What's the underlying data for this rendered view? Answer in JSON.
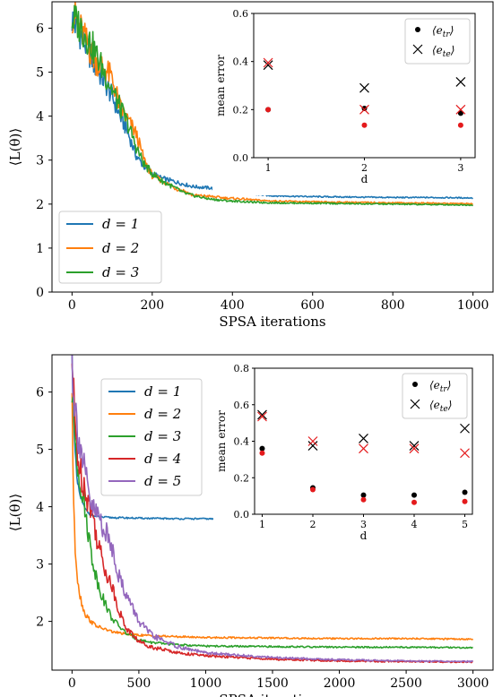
{
  "chart_data": [
    {
      "type": "line",
      "xlabel": "SPSA iterations",
      "ylabel": "⟨L(θ)⟩",
      "xlim": [
        -50,
        1050
      ],
      "ylim": [
        0,
        6.6
      ],
      "xticks": [
        0,
        200,
        400,
        600,
        800,
        1000
      ],
      "yticks": [
        0,
        1,
        2,
        3,
        4,
        5,
        6
      ],
      "legend_position": "bottom-left",
      "series": [
        {
          "name": "d = 1",
          "color": "#1f77b4",
          "x": [
            0,
            10,
            20,
            30,
            40,
            50,
            60,
            80,
            100,
            120,
            140,
            160,
            180,
            200,
            220,
            240,
            260,
            280,
            300,
            340,
            380,
            420,
            460,
            500,
            600,
            700,
            800,
            900,
            1000
          ],
          "y": [
            6.2,
            6.05,
            5.9,
            5.7,
            5.5,
            5.3,
            5.1,
            4.8,
            4.45,
            4.0,
            3.6,
            3.1,
            2.85,
            2.7,
            2.6,
            2.55,
            2.5,
            2.45,
            2.4,
            2.37,
            2.33,
            2.27,
            2.22,
            2.19,
            2.17,
            2.16,
            2.15,
            2.15,
            2.14
          ]
        },
        {
          "name": "d = 2",
          "color": "#ff7f0e",
          "x": [
            0,
            10,
            20,
            30,
            40,
            50,
            60,
            80,
            100,
            120,
            140,
            160,
            180,
            200,
            220,
            240,
            260,
            280,
            300,
            340,
            380,
            420,
            460,
            500,
            600,
            700,
            800,
            900,
            1000
          ],
          "y": [
            6.3,
            6.2,
            6.0,
            5.8,
            5.6,
            5.4,
            5.25,
            5.1,
            4.85,
            4.2,
            3.9,
            3.6,
            3.0,
            2.65,
            2.55,
            2.45,
            2.35,
            2.3,
            2.2,
            2.18,
            2.14,
            2.12,
            2.09,
            2.07,
            2.05,
            2.04,
            2.03,
            2.02,
            2.01
          ]
        },
        {
          "name": "d = 3",
          "color": "#2ca02c",
          "x": [
            0,
            10,
            20,
            30,
            40,
            50,
            60,
            80,
            100,
            120,
            140,
            160,
            180,
            200,
            220,
            240,
            260,
            280,
            300,
            340,
            380,
            420,
            460,
            500,
            600,
            700,
            800,
            900,
            1000
          ],
          "y": [
            6.2,
            6.15,
            6.05,
            5.9,
            5.75,
            5.6,
            5.4,
            5.0,
            4.6,
            4.2,
            3.8,
            3.3,
            2.9,
            2.7,
            2.55,
            2.45,
            2.35,
            2.25,
            2.2,
            2.12,
            2.08,
            2.06,
            2.04,
            2.03,
            2.02,
            2.01,
            2.0,
            1.99,
            1.98
          ]
        }
      ],
      "inset": {
        "xlabel": "d",
        "ylabel": "mean error",
        "xlim": [
          0.85,
          3.15
        ],
        "ylim": [
          0,
          0.6
        ],
        "xticks": [
          1,
          2,
          3
        ],
        "yticks": [
          0.0,
          0.2,
          0.4,
          0.6
        ],
        "legend_position": "top-right",
        "series": [
          {
            "name": "⟨e_tr⟩",
            "marker": "dot",
            "color": "#000000",
            "x": [
              1,
              2,
              3
            ],
            "y": [
              0.2,
              0.205,
              0.185
            ]
          },
          {
            "name": "⟨e_tr⟩ (red)",
            "marker": "dot",
            "color": "#e41a1c",
            "x": [
              1,
              2,
              3
            ],
            "y": [
              0.2,
              0.135,
              0.135
            ]
          },
          {
            "name": "⟨e_te⟩",
            "marker": "x",
            "color": "#000000",
            "x": [
              1,
              2,
              3
            ],
            "y": [
              0.385,
              0.29,
              0.315
            ]
          },
          {
            "name": "⟨e_te⟩ (red)",
            "marker": "x",
            "color": "#e41a1c",
            "x": [
              1,
              2,
              3
            ],
            "y": [
              0.395,
              0.2,
              0.2
            ]
          }
        ],
        "legend": [
          {
            "marker": "dot",
            "label": "⟨e",
            "sub": "tr",
            "close": "⟩"
          },
          {
            "marker": "x",
            "label": "⟨e",
            "sub": "te",
            "close": "⟩"
          }
        ]
      }
    },
    {
      "type": "line",
      "xlabel": "SPSA iterations",
      "ylabel": "⟨L(θ)⟩",
      "xlim": [
        -150,
        3150
      ],
      "ylim": [
        1.15,
        6.65
      ],
      "xticks": [
        0,
        500,
        1000,
        1500,
        2000,
        2500,
        3000
      ],
      "yticks": [
        2,
        3,
        4,
        5,
        6
      ],
      "legend_position": "top-left",
      "series": [
        {
          "name": "d = 1",
          "color": "#1f77b4",
          "x": [
            0,
            10,
            20,
            40,
            60,
            80,
            100,
            130,
            160,
            200,
            300,
            500,
            800,
            1000,
            1150
          ],
          "y": [
            6.5,
            5.8,
            5.0,
            4.4,
            4.2,
            4.05,
            3.95,
            3.88,
            3.84,
            3.82,
            3.81,
            3.8,
            3.79,
            3.79,
            3.78
          ]
        },
        {
          "name": "d = 2",
          "color": "#ff7f0e",
          "x": [
            0,
            10,
            20,
            40,
            60,
            80,
            100,
            150,
            200,
            300,
            400,
            500,
            700,
            1000,
            1500,
            2000,
            2500,
            3000
          ],
          "y": [
            6.0,
            4.2,
            3.4,
            2.8,
            2.45,
            2.25,
            2.12,
            1.98,
            1.9,
            1.82,
            1.78,
            1.76,
            1.74,
            1.72,
            1.71,
            1.7,
            1.7,
            1.69
          ]
        },
        {
          "name": "d = 3",
          "color": "#2ca02c",
          "x": [
            0,
            20,
            40,
            60,
            80,
            100,
            150,
            200,
            250,
            300,
            400,
            500,
            600,
            800,
            1000,
            1500,
            2000,
            2500,
            3000
          ],
          "y": [
            6.0,
            5.3,
            4.8,
            4.5,
            4.2,
            3.9,
            3.1,
            2.6,
            2.3,
            2.05,
            1.8,
            1.68,
            1.63,
            1.59,
            1.57,
            1.56,
            1.55,
            1.55,
            1.54
          ]
        },
        {
          "name": "d = 4",
          "color": "#d62728",
          "x": [
            0,
            20,
            40,
            60,
            80,
            100,
            150,
            200,
            250,
            300,
            350,
            400,
            500,
            600,
            800,
            1000,
            1500,
            2000,
            2500,
            3000
          ],
          "y": [
            6.5,
            5.5,
            5.0,
            4.6,
            4.5,
            4.3,
            3.9,
            3.3,
            2.9,
            2.6,
            2.2,
            1.9,
            1.65,
            1.55,
            1.45,
            1.4,
            1.34,
            1.31,
            1.3,
            1.29
          ]
        },
        {
          "name": "d = 5",
          "color": "#9467bd",
          "x": [
            0,
            20,
            40,
            60,
            80,
            100,
            150,
            200,
            250,
            300,
            350,
            400,
            500,
            600,
            800,
            1000,
            1500,
            2000,
            2500,
            3000
          ],
          "y": [
            6.55,
            5.8,
            5.4,
            5.1,
            4.8,
            4.5,
            3.95,
            3.85,
            3.55,
            3.3,
            2.8,
            2.5,
            2.0,
            1.75,
            1.55,
            1.45,
            1.37,
            1.33,
            1.31,
            1.3
          ]
        }
      ],
      "inset": {
        "xlabel": "d",
        "ylabel": "mean error",
        "xlim": [
          0.85,
          5.15
        ],
        "ylim": [
          0,
          0.8
        ],
        "xticks": [
          1,
          2,
          3,
          4,
          5
        ],
        "yticks": [
          0.0,
          0.2,
          0.4,
          0.6,
          0.8
        ],
        "legend_position": "top-right",
        "series": [
          {
            "name": "⟨e_tr⟩",
            "marker": "dot",
            "color": "#000000",
            "x": [
              1,
              2,
              3,
              4,
              5
            ],
            "y": [
              0.36,
              0.145,
              0.105,
              0.105,
              0.12
            ]
          },
          {
            "name": "⟨e_tr⟩ (red)",
            "marker": "dot",
            "color": "#e41a1c",
            "x": [
              1,
              2,
              3,
              4,
              5
            ],
            "y": [
              0.335,
              0.135,
              0.08,
              0.065,
              0.07
            ]
          },
          {
            "name": "⟨e_te⟩",
            "marker": "x",
            "color": "#000000",
            "x": [
              1,
              2,
              3,
              4,
              5
            ],
            "y": [
              0.545,
              0.375,
              0.415,
              0.375,
              0.47
            ]
          },
          {
            "name": "⟨e_te⟩ (red)",
            "marker": "x",
            "color": "#e41a1c",
            "x": [
              1,
              2,
              3,
              4,
              5
            ],
            "y": [
              0.535,
              0.4,
              0.36,
              0.36,
              0.335
            ]
          }
        ],
        "legend": [
          {
            "marker": "dot",
            "label": "⟨e",
            "sub": "tr",
            "close": "⟩"
          },
          {
            "marker": "x",
            "label": "⟨e",
            "sub": "te",
            "close": "⟩"
          }
        ]
      }
    }
  ]
}
